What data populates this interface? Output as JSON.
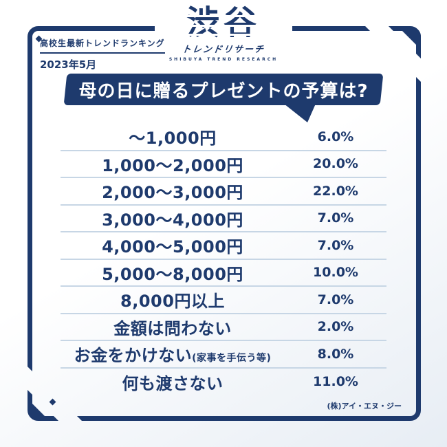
{
  "colors": {
    "navy": "#1e3a6d",
    "separator": "#c7d6e5",
    "background_start": "#ffffff",
    "background_end": "#e7edf4",
    "text_on_navy": "#ffffff"
  },
  "header": {
    "tagline": "高校生最新トレンドランキング",
    "date": "2023年5月"
  },
  "logo": {
    "main": "渋谷",
    "sub": "トレンドリサーチ",
    "sub_en": "SHIBUYA TREND RESEARCH"
  },
  "banner": {
    "title": "母の日に贈るプレゼントの予算は?"
  },
  "footer": {
    "credit": "(株)アイ・エヌ・ジー"
  },
  "chart_data": {
    "type": "table",
    "title": "母の日に贈るプレゼントの予算は?",
    "subtitle": "高校生最新トレンドランキング 2023年5月",
    "unit": "%",
    "categories": [
      "〜1,000円",
      "1,000〜2,000円",
      "2,000〜3,000円",
      "3,000〜4,000円",
      "4,000〜5,000円",
      "5,000〜8,000円",
      "8,000円以上",
      "金額は問わない",
      "お金をかけない(家事を手伝う等)",
      "何も渡さない"
    ],
    "values": [
      6.0,
      20.0,
      22.0,
      7.0,
      7.0,
      10.0,
      7.0,
      2.0,
      8.0,
      11.0
    ],
    "rows": [
      {
        "label": "〜1,000円",
        "note": "",
        "percent": "6.0%"
      },
      {
        "label": "1,000〜2,000円",
        "note": "",
        "percent": "20.0%"
      },
      {
        "label": "2,000〜3,000円",
        "note": "",
        "percent": "22.0%"
      },
      {
        "label": "3,000〜4,000円",
        "note": "",
        "percent": "7.0%"
      },
      {
        "label": "4,000〜5,000円",
        "note": "",
        "percent": "7.0%"
      },
      {
        "label": "5,000〜8,000円",
        "note": "",
        "percent": "10.0%"
      },
      {
        "label": "8,000円以上",
        "note": "",
        "percent": "7.0%"
      },
      {
        "label": "金額は問わない",
        "note": "",
        "percent": "2.0%"
      },
      {
        "label": "お金をかけない",
        "note": "(家事を手伝う等)",
        "percent": "8.0%"
      },
      {
        "label": "何も渡さない",
        "note": "",
        "percent": "11.0%"
      }
    ]
  }
}
